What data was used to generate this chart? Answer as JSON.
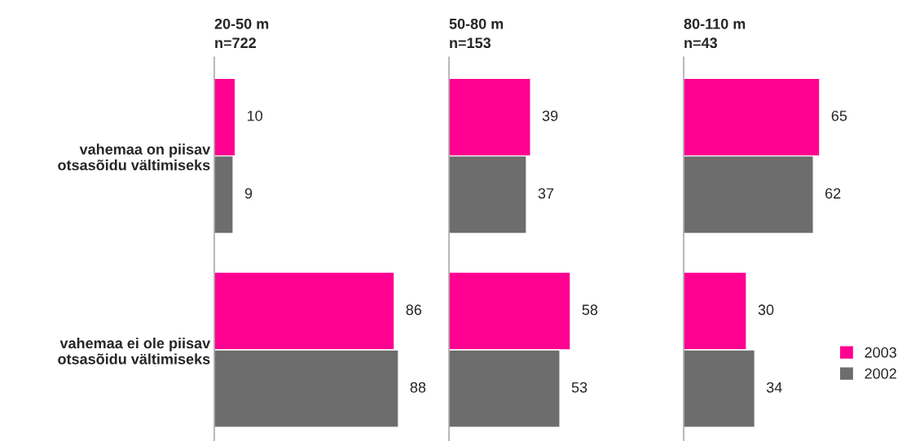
{
  "chart_data": [
    {
      "type": "bar",
      "orientation": "horizontal",
      "title": "20-50 m\nn=722",
      "categories": [
        "vahemaa on piisav\notsasõidu vältimiseks",
        "vahemaa ei ole piisav\notsasõidu vältimiseks"
      ],
      "tick_labels": "y",
      "data_labels": true,
      "legend": false,
      "series": [
        {
          "color": "#ff0090",
          "values": [
            10,
            86
          ]
        },
        {
          "color": "#6d6d6d",
          "values": [
            9,
            88
          ]
        }
      ]
    },
    {
      "type": "bar",
      "orientation": "horizontal",
      "title": "50-80 m\nn=153",
      "categories": [
        null,
        null
      ],
      "tick_labels": false,
      "data_labels": true,
      "legend": false,
      "series": [
        {
          "color": "#ff0090",
          "values": [
            39,
            58
          ]
        },
        {
          "color": "#6d6d6d",
          "values": [
            37,
            53
          ]
        }
      ]
    },
    {
      "type": "bar",
      "orientation": "horizontal",
      "title": "80-110 m\nn=43",
      "categories": [
        null,
        null
      ],
      "tick_labels": false,
      "data_labels": true,
      "legend": "bottom right",
      "series": [
        {
          "name": "2003",
          "color": "#ff0090",
          "values": [
            65,
            30
          ]
        },
        {
          "name": "2002",
          "color": "#6d6d6d",
          "values": [
            62,
            34
          ]
        }
      ]
    }
  ]
}
